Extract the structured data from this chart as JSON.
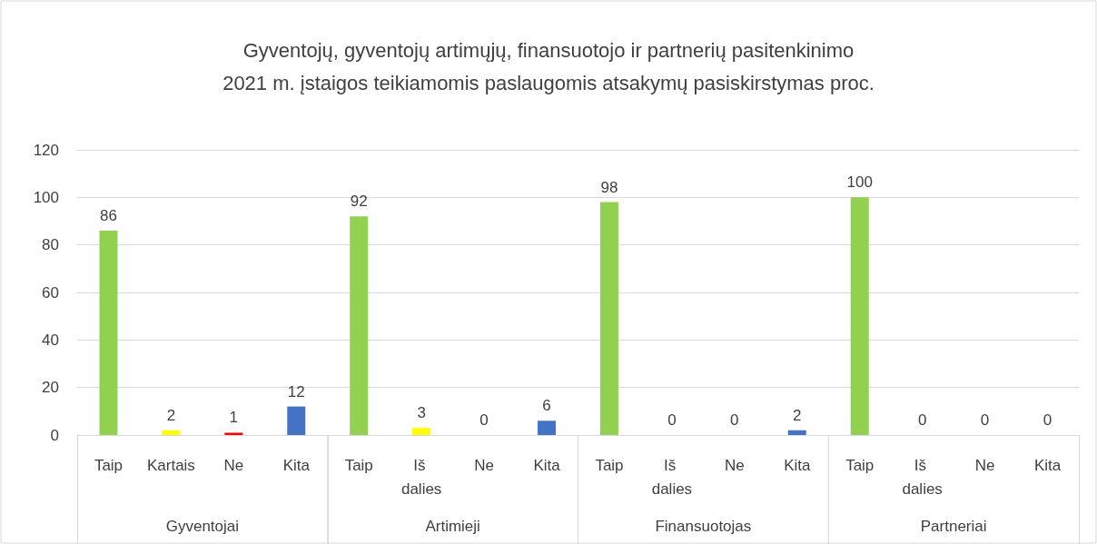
{
  "chart_data": {
    "type": "bar",
    "title": "Gyventojų, gyventojų artimųjų, finansuotojo ir partnerių pasitenkinimo\n2021 m. įstaigos teikiamomis paslaugomis atsakymų pasiskirstymas proc.",
    "categories": [
      "Taip",
      "Kartais",
      "Ne",
      "Kita",
      "Taip",
      "Iš dalies",
      "Ne",
      "Kita",
      "Taip",
      "Iš dalies",
      "Ne",
      "Kita",
      "Taip",
      "Iš dalies",
      "Ne",
      "Kita"
    ],
    "values": [
      86,
      2,
      1,
      12,
      92,
      3,
      0,
      6,
      98,
      0,
      0,
      2,
      100,
      0,
      0,
      0
    ],
    "colors": [
      "#92d050",
      "#ffff00",
      "#ff0000",
      "#4472c4",
      "#92d050",
      "#ffff00",
      "#ff0000",
      "#4472c4",
      "#92d050",
      "#ffff00",
      "#ff0000",
      "#4472c4",
      "#92d050",
      "#ffff00",
      "#ff0000",
      "#4472c4"
    ],
    "annotations": [
      "Gyventojai",
      "Artimieji",
      "Finansuotojas",
      "Partneriai"
    ],
    "ylim": [
      0,
      120
    ],
    "yticks": [
      0,
      20,
      40,
      60,
      80,
      100,
      120
    ],
    "grid": "y",
    "data_labels": true
  }
}
